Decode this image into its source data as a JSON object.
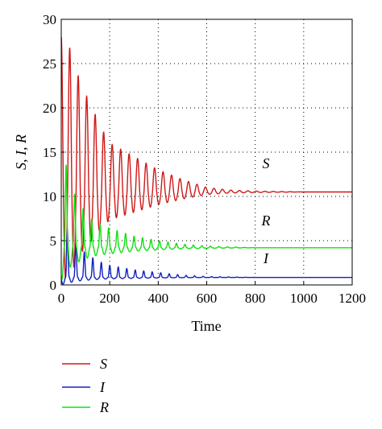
{
  "chart_data": {
    "type": "line",
    "xlabel": "Time",
    "ylabel": "S, I, R",
    "xlim": [
      0,
      1200
    ],
    "ylim": [
      0,
      30
    ],
    "xticks": [
      0,
      200,
      400,
      600,
      800,
      1000,
      1200
    ],
    "yticks": [
      0,
      5,
      10,
      15,
      20,
      25,
      30
    ],
    "grid": true,
    "legend_position": "bottom-left, below plot",
    "annotations": [
      "S",
      "R",
      "I"
    ],
    "series": [
      {
        "name": "S",
        "color": "#d01818",
        "equilibrium": 10.5,
        "peak": 28,
        "trough": 0.5,
        "x": [
          0,
          40,
          80,
          120,
          160,
          200,
          300,
          400,
          500,
          600,
          700,
          800,
          1000,
          1200
        ],
        "y": [
          28,
          26.6,
          22.6,
          20.5,
          18.0,
          16.0,
          14.5,
          13.0,
          11.9,
          11.0,
          10.7,
          10.6,
          10.5,
          10.5
        ]
      },
      {
        "name": "I",
        "color": "#1020c0",
        "equilibrium": 0.85,
        "peak": 7.5,
        "trough": 0.05,
        "x": [
          0,
          40,
          80,
          120,
          160,
          200,
          300,
          400,
          500,
          600,
          700,
          800,
          1000,
          1200
        ],
        "y": [
          7.5,
          5.5,
          4.0,
          3.2,
          2.6,
          2.2,
          1.7,
          1.4,
          1.1,
          0.95,
          0.9,
          0.85,
          0.85,
          0.85
        ]
      },
      {
        "name": "R",
        "color": "#10e010",
        "equilibrium": 4.2,
        "peak": 16.2,
        "trough": 0.5,
        "x": [
          0,
          40,
          80,
          120,
          160,
          200,
          300,
          400,
          500,
          600,
          700,
          800,
          1000,
          1200
        ],
        "y": [
          16.2,
          11.0,
          9.0,
          7.5,
          6.8,
          6.4,
          5.5,
          5.0,
          4.6,
          4.4,
          4.3,
          4.2,
          4.2,
          4.2
        ]
      }
    ]
  },
  "legend": [
    {
      "label": "S",
      "color": "#d01818"
    },
    {
      "label": "I",
      "color": "#1020c0"
    },
    {
      "label": "R",
      "color": "#10e010"
    }
  ]
}
